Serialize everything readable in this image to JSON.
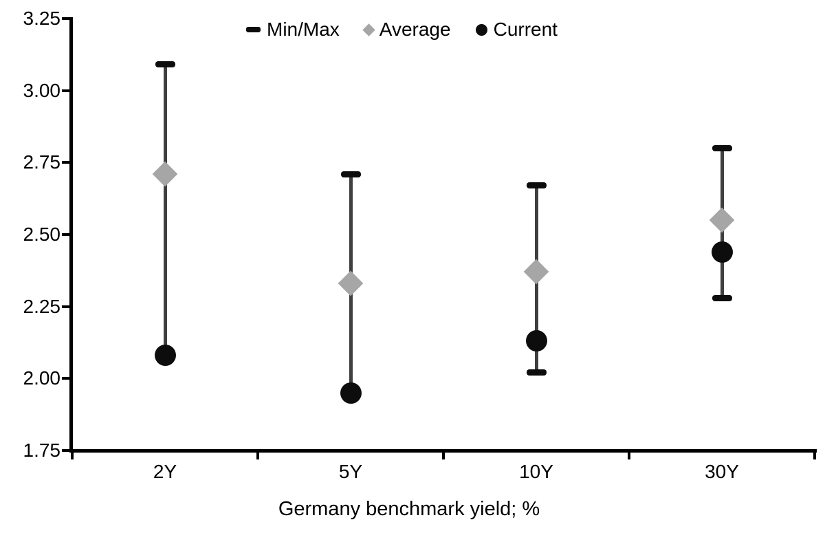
{
  "chart_data": {
    "type": "scatter",
    "subtype": "min-max-range-with-markers",
    "title": "",
    "xlabel": "Germany benchmark yield; %",
    "ylabel": "",
    "ylim": [
      1.75,
      3.25
    ],
    "ytick_step": 0.25,
    "ytick_labels": [
      "3.25",
      "3.00",
      "2.75",
      "2.50",
      "2.25",
      "2.00",
      "1.75"
    ],
    "categories": [
      "2Y",
      "5Y",
      "10Y",
      "30Y"
    ],
    "series": [
      {
        "name": "Min/Max",
        "min": [
          2.08,
          1.95,
          2.02,
          2.28
        ],
        "max": [
          3.09,
          2.71,
          2.67,
          2.8
        ]
      },
      {
        "name": "Average",
        "values": [
          2.71,
          2.33,
          2.37,
          2.55
        ]
      },
      {
        "name": "Current",
        "values": [
          2.08,
          1.95,
          2.13,
          2.44
        ]
      }
    ],
    "legend": [
      {
        "label": "Min/Max",
        "marker": "dash-icon"
      },
      {
        "label": "Average",
        "marker": "diamond-icon"
      },
      {
        "label": "Current",
        "marker": "circle-icon"
      }
    ],
    "legend_position": "top-center",
    "grid": false,
    "colors": {
      "whisker": "#3f3f3f",
      "cap": "#0d0d0d",
      "average": "#a6a6a6",
      "current": "#0d0d0d",
      "axis": "#000000",
      "text": "#000000",
      "background": "#ffffff"
    }
  }
}
